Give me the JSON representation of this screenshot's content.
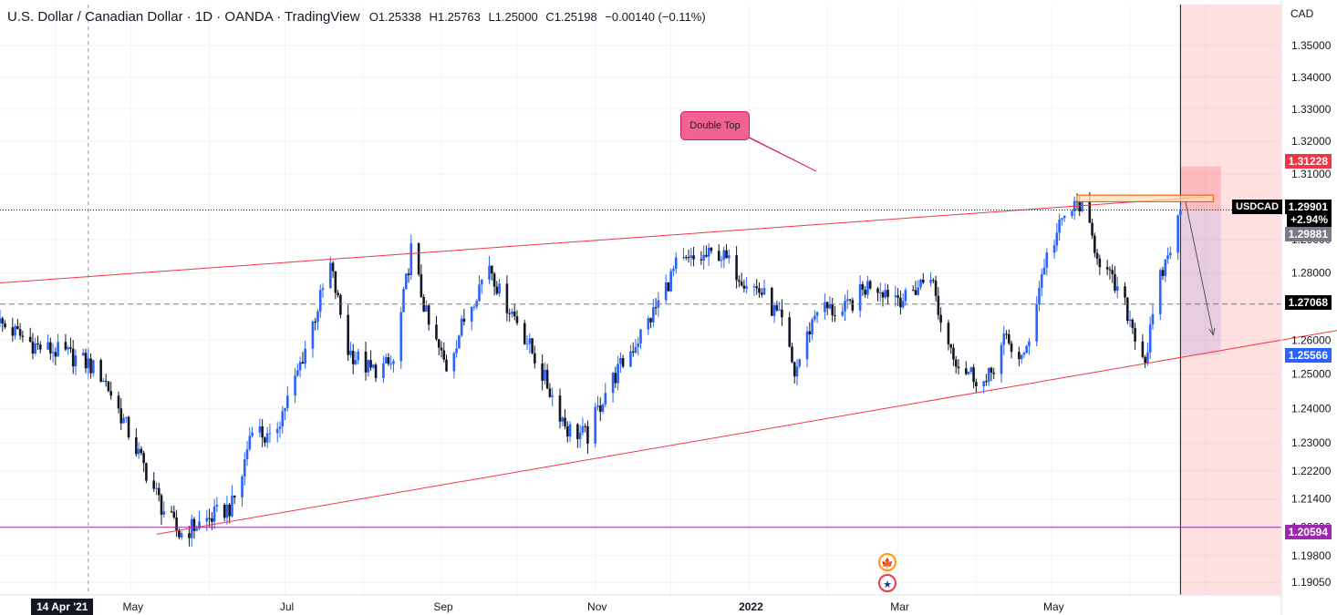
{
  "header": {
    "title": "U.S. Dollar / Canadian Dollar · 1D · OANDA · TradingView",
    "ohlc": {
      "open": "O1.25338",
      "high": "H1.25763",
      "low": "L1.25000",
      "close": "C1.25198",
      "change": "−0.00140 (−0.11%)"
    }
  },
  "annotation": {
    "label": "Double Top"
  },
  "ticker": "USDCAD",
  "crosshair_date": "14 Apr '21",
  "price_labels": [
    {
      "key": "target",
      "text": "1.31228",
      "color": "#f23645",
      "y": 1.31228
    },
    {
      "key": "last",
      "text": "1.29901",
      "color": "#000000",
      "y": 1.29901
    },
    {
      "key": "change",
      "text": "+2.94%",
      "color": "#000000",
      "y": null
    },
    {
      "key": "prev",
      "text": "1.29881",
      "color": "#787b86",
      "y": 1.29881
    },
    {
      "key": "mid",
      "text": "1.27068",
      "color": "#000000",
      "y": 1.27068
    },
    {
      "key": "stop",
      "text": "1.25566",
      "color": "#2962ff",
      "y": 1.25566
    },
    {
      "key": "support",
      "text": "1.20594",
      "color": "#9c27b0",
      "y": 1.20594
    }
  ],
  "chart_data": {
    "type": "candlestick",
    "symbol": "USDCAD",
    "currency": "CAD",
    "y_scale": "log",
    "grid": true,
    "xlim": [
      "2021-03-10",
      "2022-07-31"
    ],
    "ylim": [
      1.187,
      1.363
    ],
    "x_ticks": [
      "May",
      "Jul",
      "Sep",
      "Nov",
      "2022",
      "Mar",
      "May"
    ],
    "y_ticks": [
      "1.35000",
      "1.34000",
      "1.33000",
      "1.32000",
      "1.31000",
      "1.29000",
      "1.28000",
      "1.26000",
      "1.25000",
      "1.24000",
      "1.23000",
      "1.22200",
      "1.21400",
      "1.20600",
      "1.19800",
      "1.19050"
    ],
    "close_path": [
      [
        "2021-03-10",
        1.265
      ],
      [
        "2021-03-25",
        1.258
      ],
      [
        "2021-04-05",
        1.256
      ],
      [
        "2021-04-14",
        1.253
      ],
      [
        "2021-04-20",
        1.249
      ],
      [
        "2021-04-27",
        1.238
      ],
      [
        "2021-05-05",
        1.225
      ],
      [
        "2021-05-13",
        1.212
      ],
      [
        "2021-05-20",
        1.204
      ],
      [
        "2021-05-31",
        1.208
      ],
      [
        "2021-06-10",
        1.212
      ],
      [
        "2021-06-14",
        1.221
      ],
      [
        "2021-06-18",
        1.236
      ],
      [
        "2021-06-25",
        1.23
      ],
      [
        "2021-07-05",
        1.248
      ],
      [
        "2021-07-19",
        1.282
      ],
      [
        "2021-07-26",
        1.257
      ],
      [
        "2021-08-04",
        1.251
      ],
      [
        "2021-08-13",
        1.253
      ],
      [
        "2021-08-20",
        1.287
      ],
      [
        "2021-08-27",
        1.264
      ],
      [
        "2021-09-03",
        1.252
      ],
      [
        "2021-09-10",
        1.266
      ],
      [
        "2021-09-20",
        1.283
      ],
      [
        "2021-09-24",
        1.274
      ],
      [
        "2021-10-01",
        1.266
      ],
      [
        "2021-10-11",
        1.25
      ],
      [
        "2021-10-21",
        1.234
      ],
      [
        "2021-10-29",
        1.232
      ],
      [
        "2021-11-05",
        1.245
      ],
      [
        "2021-11-16",
        1.258
      ],
      [
        "2021-11-24",
        1.268
      ],
      [
        "2021-12-03",
        1.282
      ],
      [
        "2021-12-20",
        1.286
      ],
      [
        "2021-12-30",
        1.278
      ],
      [
        "2022-01-06",
        1.274
      ],
      [
        "2022-01-14",
        1.265
      ],
      [
        "2022-01-19",
        1.25
      ],
      [
        "2022-01-28",
        1.27
      ],
      [
        "2022-02-07",
        1.268
      ],
      [
        "2022-02-18",
        1.277
      ],
      [
        "2022-03-04",
        1.272
      ],
      [
        "2022-03-14",
        1.28
      ],
      [
        "2022-03-18",
        1.265
      ],
      [
        "2022-03-25",
        1.253
      ],
      [
        "2022-04-05",
        1.247
      ],
      [
        "2022-04-12",
        1.26
      ],
      [
        "2022-04-20",
        1.254
      ],
      [
        "2022-04-28",
        1.283
      ],
      [
        "2022-05-06",
        1.297
      ],
      [
        "2022-05-12",
        1.301
      ],
      [
        "2022-05-20",
        1.284
      ],
      [
        "2022-05-30",
        1.27
      ],
      [
        "2022-06-07",
        1.254
      ],
      [
        "2022-06-13",
        1.278
      ],
      [
        "2022-06-21",
        1.298
      ]
    ],
    "lines": [
      {
        "name": "upper-channel",
        "color": "#f23645",
        "from": [
          "2021-03-10",
          1.277
        ],
        "to": [
          "2022-07-01",
          1.303
        ]
      },
      {
        "name": "lower-channel",
        "color": "#f23645",
        "from": [
          "2021-05-11",
          1.204
        ],
        "to": [
          "2022-08-31",
          1.264
        ]
      },
      {
        "name": "support",
        "color": "#9c27b0",
        "from": [
          "2021-03-10",
          1.20594
        ],
        "to": [
          "2022-07-31",
          1.20594
        ]
      },
      {
        "name": "last-price",
        "color": "#131722",
        "from": [
          "2021-03-10",
          1.29901
        ],
        "to": [
          "2022-07-31",
          1.29901
        ]
      }
    ],
    "double_top_zone": {
      "from": "2022-05-11",
      "to": "2022-07-04",
      "low": 1.3015,
      "high": 1.3035
    },
    "short_position": {
      "from": "2022-06-21",
      "to": "2022-07-07",
      "entry": 1.29881,
      "target": 1.31228,
      "stop": 1.25566
    },
    "current_date": "2022-06-21"
  }
}
